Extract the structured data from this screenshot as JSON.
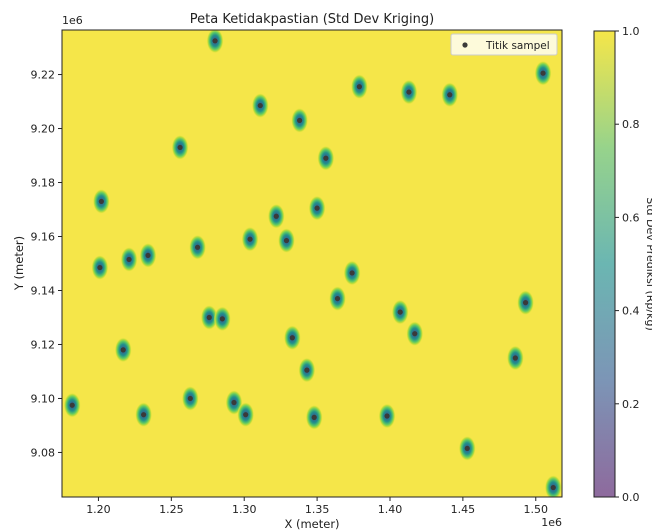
{
  "chart_data": {
    "type": "heatmap",
    "title": "Peta Ketidakpastian (Std Dev Kriging)",
    "xlabel": "X (meter)",
    "ylabel": "Y (meter)",
    "x_offset_label": "1e6",
    "y_offset_label": "1e6",
    "xlim": [
      1.175,
      1.518
    ],
    "ylim": [
      9.0635,
      9.2365
    ],
    "x_ticks": [
      1.2,
      1.25,
      1.3,
      1.35,
      1.4,
      1.45,
      1.5
    ],
    "x_tick_labels": [
      "1.20",
      "1.25",
      "1.30",
      "1.35",
      "1.40",
      "1.45",
      "1.50"
    ],
    "y_ticks": [
      9.08,
      9.1,
      9.12,
      9.14,
      9.16,
      9.18,
      9.2,
      9.22
    ],
    "y_tick_labels": [
      "9.08",
      "9.10",
      "9.12",
      "9.14",
      "9.16",
      "9.18",
      "9.20",
      "9.22"
    ],
    "colorbar": {
      "label": "Std Dev Prediksi (Rp/kg)",
      "min": 0.0,
      "max": 1.0,
      "ticks": [
        0.0,
        0.2,
        0.4,
        0.6,
        0.8,
        1.0
      ],
      "tick_labels": [
        "0.0",
        "0.2",
        "0.4",
        "0.6",
        "0.8",
        "1.0"
      ],
      "colormap": "viridis",
      "alpha": 0.6
    },
    "background_value": 1.0,
    "legend": {
      "label": "Titik sampel",
      "position": "top-right"
    },
    "grid": false,
    "sample_points": {
      "name": "Titik sampel",
      "x": [
        1.28,
        1.505,
        1.379,
        1.413,
        1.441,
        1.311,
        1.338,
        1.256,
        1.356,
        1.202,
        1.35,
        1.322,
        1.304,
        1.329,
        1.268,
        1.234,
        1.221,
        1.201,
        1.374,
        1.364,
        1.493,
        1.407,
        1.417,
        1.276,
        1.285,
        1.333,
        1.217,
        1.486,
        1.343,
        1.182,
        1.263,
        1.293,
        1.231,
        1.301,
        1.348,
        1.398,
        1.453,
        1.512
      ],
      "y": [
        9.2325,
        9.2205,
        9.2155,
        9.2135,
        9.2125,
        9.2085,
        9.203,
        9.193,
        9.189,
        9.173,
        9.1705,
        9.1675,
        9.159,
        9.1585,
        9.156,
        9.153,
        9.1515,
        9.1485,
        9.1465,
        9.137,
        9.1355,
        9.132,
        9.124,
        9.13,
        9.1295,
        9.1225,
        9.118,
        9.115,
        9.1105,
        9.0975,
        9.1,
        9.0985,
        9.094,
        9.094,
        9.093,
        9.0935,
        9.0815,
        9.067
      ],
      "color": "#3a3a3a"
    }
  }
}
